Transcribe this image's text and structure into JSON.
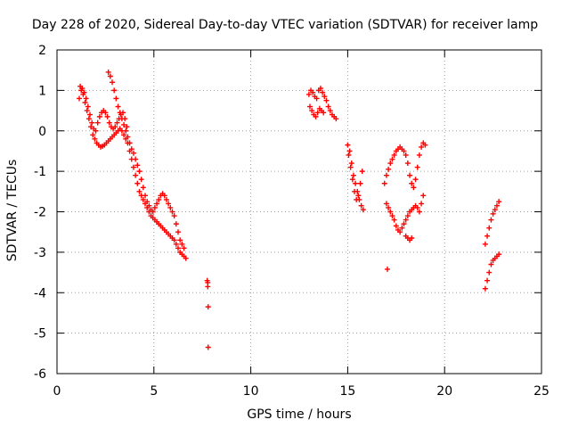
{
  "chart_data": {
    "type": "scatter",
    "title": "Day 228 of 2020, Sidereal Day-to-day VTEC variation (SDTVAR) for receiver lamp",
    "xlabel": "GPS time / hours",
    "ylabel": "SDTVAR / TECUs",
    "xlim": [
      0,
      25
    ],
    "ylim": [
      -6,
      2
    ],
    "xticks": [
      "0",
      "5",
      "10",
      "15",
      "20",
      "25"
    ],
    "yticks": [
      "2",
      "1",
      "0",
      "-1",
      "-2",
      "-3",
      "-4",
      "-5",
      "-6"
    ],
    "grid": true,
    "marker": "+",
    "color": "#ff0000",
    "series": [
      {
        "name": "SDTVAR",
        "x": [
          1.15,
          1.25,
          1.35,
          1.45,
          1.55,
          1.65,
          1.75,
          1.85,
          1.95,
          2.05,
          2.15,
          2.25,
          2.35,
          2.45,
          2.55,
          2.65,
          2.75,
          2.85,
          2.95,
          3.05,
          3.15,
          3.25,
          3.35,
          3.45,
          3.55,
          3.65,
          3.75,
          3.85,
          3.95,
          4.05,
          4.15,
          4.25,
          4.35,
          4.45,
          4.55,
          4.65,
          4.75,
          4.85,
          4.95,
          5.05,
          5.15,
          5.25,
          5.35,
          5.45,
          5.55,
          5.65,
          5.75,
          5.85,
          5.95,
          6.05,
          6.15,
          6.25,
          6.35,
          6.45,
          6.55,
          6.65,
          1.2,
          1.3,
          1.4,
          1.5,
          1.6,
          1.7,
          1.8,
          1.9,
          2.0,
          2.1,
          2.2,
          2.3,
          2.4,
          2.5,
          2.6,
          2.7,
          2.8,
          2.9,
          3.0,
          3.1,
          3.2,
          3.3,
          3.4,
          3.5,
          3.6,
          2.65,
          2.75,
          2.85,
          2.95,
          3.05,
          3.15,
          3.25,
          3.35,
          3.45,
          3.55,
          3.65,
          3.75,
          3.85,
          3.95,
          4.05,
          4.15,
          4.25,
          4.35,
          4.45,
          4.55,
          4.65,
          4.75,
          4.85,
          4.95,
          5.05,
          5.15,
          5.25,
          5.35,
          5.45,
          5.55,
          5.65,
          5.75,
          5.85,
          5.95,
          6.05,
          6.15,
          6.25,
          6.35,
          6.45,
          6.55,
          7.75,
          7.78,
          7.78,
          7.8,
          7.8,
          13.0,
          13.1,
          13.2,
          13.3,
          13.4,
          13.5,
          13.6,
          13.7,
          13.8,
          13.9,
          14.0,
          14.1,
          14.2,
          14.3,
          14.4,
          13.05,
          13.15,
          13.25,
          13.35,
          13.45,
          13.55,
          13.65,
          13.75,
          15.0,
          15.1,
          15.2,
          15.3,
          15.4,
          15.5,
          15.6,
          15.7,
          15.8,
          15.05,
          15.15,
          15.25,
          15.35,
          15.45,
          15.55,
          15.65,
          15.75,
          16.9,
          17.0,
          17.1,
          17.2,
          17.3,
          17.4,
          17.5,
          17.6,
          17.7,
          17.8,
          17.9,
          18.0,
          18.1,
          18.2,
          18.3,
          18.4,
          18.5,
          18.6,
          18.7,
          18.8,
          18.9,
          19.0,
          17.0,
          17.1,
          17.2,
          17.3,
          17.4,
          17.5,
          17.6,
          17.7,
          17.8,
          17.9,
          18.0,
          18.1,
          18.2,
          18.3,
          18.4,
          18.5,
          18.6,
          18.7,
          18.8,
          18.9,
          18.0,
          18.1,
          18.2,
          18.3,
          17.05,
          22.1,
          22.2,
          22.3,
          22.4,
          22.5,
          22.6,
          22.7,
          22.8,
          22.1,
          22.2,
          22.3,
          22.4,
          22.5,
          22.6,
          22.7,
          22.8
        ],
        "y": [
          0.8,
          1.0,
          0.9,
          0.7,
          0.5,
          0.3,
          0.1,
          -0.1,
          -0.2,
          -0.3,
          -0.35,
          -0.4,
          -0.38,
          -0.35,
          -0.3,
          -0.25,
          -0.2,
          -0.15,
          -0.1,
          -0.05,
          0.0,
          0.05,
          0.0,
          -0.1,
          -0.2,
          -0.3,
          -0.5,
          -0.7,
          -0.9,
          -1.1,
          -1.3,
          -1.5,
          -1.6,
          -1.7,
          -1.8,
          -1.9,
          -2.0,
          -2.1,
          -2.15,
          -2.2,
          -2.25,
          -2.3,
          -2.35,
          -2.4,
          -2.45,
          -2.5,
          -2.55,
          -2.6,
          -2.65,
          -2.7,
          -2.8,
          -2.9,
          -3.0,
          -3.05,
          -3.1,
          -3.15,
          1.1,
          1.05,
          0.95,
          0.8,
          0.6,
          0.4,
          0.2,
          0.05,
          0.0,
          0.2,
          0.35,
          0.45,
          0.5,
          0.45,
          0.35,
          0.2,
          0.1,
          0.05,
          0.1,
          0.2,
          0.3,
          0.4,
          0.45,
          0.3,
          0.1,
          1.45,
          1.35,
          1.2,
          1.0,
          0.8,
          0.6,
          0.45,
          0.3,
          0.15,
          0.0,
          -0.15,
          -0.3,
          -0.45,
          -0.55,
          -0.7,
          -0.85,
          -1.0,
          -1.2,
          -1.4,
          -1.6,
          -1.75,
          -1.85,
          -1.95,
          -2.0,
          -1.9,
          -1.8,
          -1.7,
          -1.6,
          -1.55,
          -1.6,
          -1.7,
          -1.8,
          -1.9,
          -2.0,
          -2.1,
          -2.3,
          -2.5,
          -2.7,
          -2.8,
          -2.9,
          -3.7,
          -3.75,
          -3.85,
          -4.35,
          -5.35,
          0.9,
          1.0,
          0.95,
          0.85,
          0.8,
          1.0,
          1.05,
          0.95,
          0.85,
          0.75,
          0.6,
          0.5,
          0.4,
          0.35,
          0.3,
          0.6,
          0.5,
          0.4,
          0.35,
          0.45,
          0.55,
          0.5,
          0.45,
          -0.35,
          -0.5,
          -0.8,
          -1.1,
          -1.3,
          -1.5,
          -1.7,
          -1.85,
          -1.95,
          -0.6,
          -0.9,
          -1.2,
          -1.5,
          -1.7,
          -1.6,
          -1.3,
          -1.0,
          -1.3,
          -1.1,
          -0.95,
          -0.8,
          -0.7,
          -0.6,
          -0.5,
          -0.45,
          -0.4,
          -0.45,
          -0.5,
          -0.6,
          -0.8,
          -1.1,
          -1.3,
          -1.4,
          -1.2,
          -0.9,
          -0.6,
          -0.4,
          -0.3,
          -0.35,
          -1.8,
          -1.9,
          -2.0,
          -2.1,
          -2.2,
          -2.35,
          -2.45,
          -2.5,
          -2.4,
          -2.3,
          -2.2,
          -2.1,
          -2.0,
          -1.95,
          -1.9,
          -1.85,
          -1.9,
          -2.0,
          -1.8,
          -1.6,
          -2.6,
          -2.65,
          -2.7,
          -2.65,
          -3.42,
          -3.9,
          -3.7,
          -3.5,
          -3.3,
          -3.2,
          -3.15,
          -3.1,
          -3.05,
          -2.8,
          -2.6,
          -2.4,
          -2.2,
          -2.05,
          -1.95,
          -1.85,
          -1.75
        ]
      }
    ]
  }
}
